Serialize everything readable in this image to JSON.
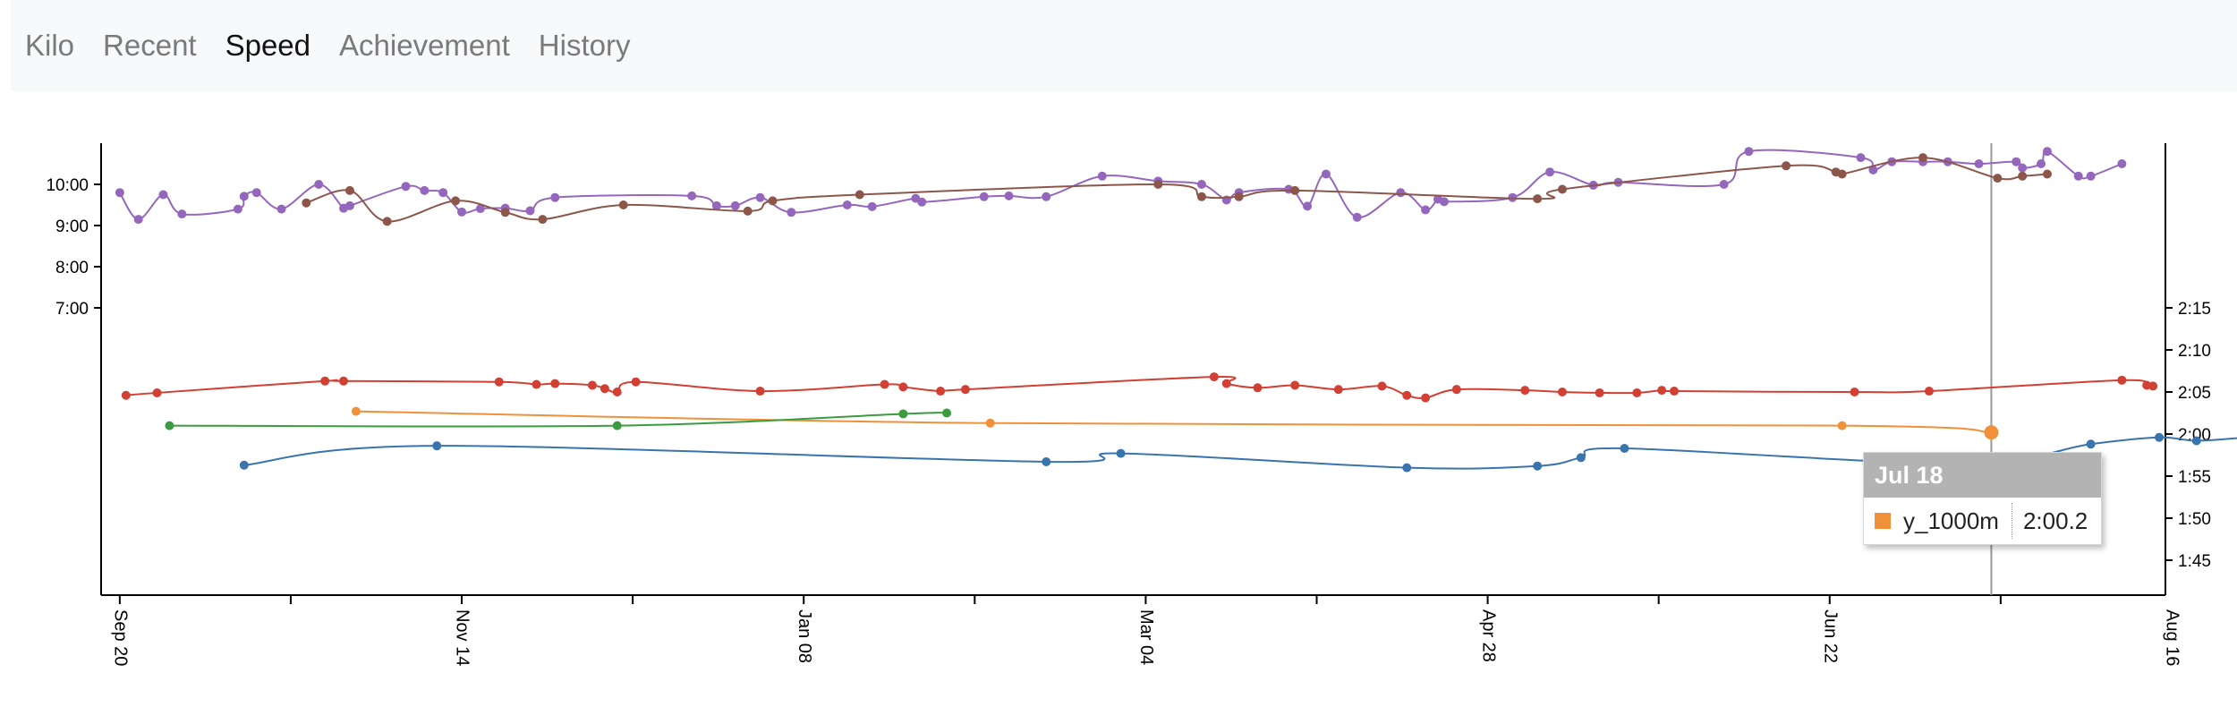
{
  "nav": {
    "tabs": [
      {
        "label": "Kilo",
        "active": false
      },
      {
        "label": "Recent",
        "active": false
      },
      {
        "label": "Speed",
        "active": true
      },
      {
        "label": "Achievement",
        "active": false
      },
      {
        "label": "History",
        "active": false
      }
    ]
  },
  "tooltip": {
    "date": "Jul 18",
    "series": "y_1000m",
    "value": "2:00.2",
    "color": "#f0913a"
  },
  "chart_data": {
    "type": "line",
    "x_ticks": [
      "Sep 20",
      "Nov 14",
      "Jan 08",
      "Mar 04",
      "Apr 28",
      "Jun 22",
      "Aug 16"
    ],
    "x_range_days": [
      -3,
      329
    ],
    "hover_day": 301,
    "y_left": {
      "ticks": [
        "10:00",
        "9:00",
        "8:00",
        "7:00"
      ],
      "unit": "minutes"
    },
    "y_right": {
      "ticks": [
        "2:15",
        "2:10",
        "2:05",
        "2:00",
        "1:55",
        "1:50",
        "1:45"
      ],
      "unit": "minutes"
    },
    "series": [
      {
        "name": "y_1000m",
        "color": "#f0913a",
        "axis": "right",
        "points": [
          [
            38,
            122.7
          ],
          [
            140,
            121.3
          ],
          [
            277,
            121.0
          ],
          [
            301,
            120.2
          ]
        ]
      },
      {
        "name": "",
        "color": "#d23f33",
        "axis": "right",
        "points": [
          [
            1,
            124.6
          ],
          [
            6,
            124.9
          ],
          [
            33,
            126.3
          ],
          [
            36,
            126.3
          ],
          [
            61,
            126.2
          ],
          [
            67,
            125.9
          ],
          [
            70,
            126.0
          ],
          [
            76,
            125.8
          ],
          [
            78,
            125.4
          ],
          [
            80,
            125.0
          ],
          [
            83,
            126.2
          ],
          [
            103,
            125.1
          ],
          [
            123,
            125.9
          ],
          [
            126,
            125.6
          ],
          [
            132,
            125.1
          ],
          [
            136,
            125.3
          ],
          [
            176,
            126.8
          ],
          [
            178,
            126.0
          ],
          [
            183,
            125.5
          ],
          [
            189,
            125.8
          ],
          [
            196,
            125.3
          ],
          [
            203,
            125.7
          ],
          [
            207,
            124.6
          ],
          [
            210,
            124.3
          ],
          [
            215,
            125.3
          ],
          [
            226,
            125.2
          ],
          [
            232,
            125.0
          ],
          [
            238,
            124.9
          ],
          [
            244,
            124.9
          ],
          [
            248,
            125.2
          ],
          [
            250,
            125.1
          ],
          [
            279,
            125.0
          ],
          [
            291,
            125.1
          ],
          [
            322,
            126.4
          ],
          [
            326,
            125.8
          ],
          [
            327,
            125.7
          ]
        ]
      },
      {
        "name": "",
        "color": "#3a9c3f",
        "axis": "right",
        "points": [
          [
            8,
            121.0
          ],
          [
            80,
            121.0
          ],
          [
            126,
            122.4
          ],
          [
            133,
            122.5
          ]
        ]
      },
      {
        "name": "",
        "color": "#3a74ad",
        "axis": "right",
        "points": [
          [
            20,
            116.3
          ],
          [
            51,
            118.6
          ],
          [
            149,
            116.7
          ],
          [
            161,
            117.7
          ],
          [
            207,
            116.0
          ],
          [
            228,
            116.2
          ],
          [
            235,
            117.2
          ],
          [
            242,
            118.3
          ],
          [
            296,
            116.5
          ],
          [
            317,
            118.8
          ],
          [
            328,
            119.6
          ],
          [
            334,
            119.2
          ],
          [
            342,
            119.6
          ]
        ]
      },
      {
        "name": "",
        "color": "#9467bd",
        "axis": "left",
        "points": [
          [
            0,
            9.8
          ],
          [
            3,
            9.15
          ],
          [
            7,
            9.75
          ],
          [
            10,
            9.28
          ],
          [
            19,
            9.4
          ],
          [
            20,
            9.71
          ],
          [
            22,
            9.8
          ],
          [
            26,
            9.4
          ],
          [
            32,
            10.0
          ],
          [
            36,
            9.42
          ],
          [
            37,
            9.48
          ],
          [
            46,
            9.95
          ],
          [
            49,
            9.85
          ],
          [
            52,
            9.8
          ],
          [
            55,
            9.33
          ],
          [
            58,
            9.41
          ],
          [
            62,
            9.42
          ],
          [
            66,
            9.36
          ],
          [
            70,
            9.68
          ],
          [
            92,
            9.72
          ],
          [
            96,
            9.48
          ],
          [
            99,
            9.48
          ],
          [
            103,
            9.68
          ],
          [
            108,
            9.32
          ],
          [
            117,
            9.5
          ],
          [
            121,
            9.46
          ],
          [
            128,
            9.66
          ],
          [
            129,
            9.57
          ],
          [
            139,
            9.7
          ],
          [
            143,
            9.72
          ],
          [
            149,
            9.7
          ],
          [
            158,
            10.2
          ],
          [
            167,
            10.08
          ],
          [
            174,
            10.0
          ],
          [
            178,
            9.62
          ],
          [
            180,
            9.8
          ],
          [
            188,
            9.88
          ],
          [
            191,
            9.47
          ],
          [
            194,
            10.25
          ],
          [
            199,
            9.2
          ],
          [
            206,
            9.8
          ],
          [
            210,
            9.38
          ],
          [
            212,
            9.64
          ],
          [
            213,
            9.58
          ],
          [
            224,
            9.68
          ],
          [
            230,
            10.3
          ],
          [
            237,
            9.98
          ],
          [
            241,
            10.05
          ],
          [
            258,
            10.0
          ],
          [
            262,
            10.8
          ],
          [
            280,
            10.65
          ],
          [
            282,
            10.35
          ],
          [
            285,
            10.55
          ],
          [
            290,
            10.55
          ],
          [
            294,
            10.55
          ],
          [
            299,
            10.5
          ],
          [
            305,
            10.55
          ],
          [
            306,
            10.4
          ],
          [
            309,
            10.5
          ],
          [
            310,
            10.8
          ],
          [
            315,
            10.2
          ],
          [
            317,
            10.2
          ],
          [
            322,
            10.5
          ]
        ]
      },
      {
        "name": "",
        "color": "#8c564b",
        "axis": "left",
        "points": [
          [
            30,
            9.55
          ],
          [
            37,
            9.85
          ],
          [
            43,
            9.1
          ],
          [
            54,
            9.6
          ],
          [
            62,
            9.32
          ],
          [
            68,
            9.15
          ],
          [
            81,
            9.5
          ],
          [
            101,
            9.35
          ],
          [
            105,
            9.6
          ],
          [
            119,
            9.75
          ],
          [
            167,
            10.0
          ],
          [
            174,
            9.7
          ],
          [
            180,
            9.7
          ],
          [
            189,
            9.85
          ],
          [
            228,
            9.65
          ],
          [
            232,
            9.88
          ],
          [
            268,
            10.45
          ],
          [
            276,
            10.3
          ],
          [
            277,
            10.25
          ],
          [
            290,
            10.65
          ],
          [
            302,
            10.15
          ],
          [
            306,
            10.2
          ],
          [
            310,
            10.25
          ]
        ]
      }
    ]
  }
}
